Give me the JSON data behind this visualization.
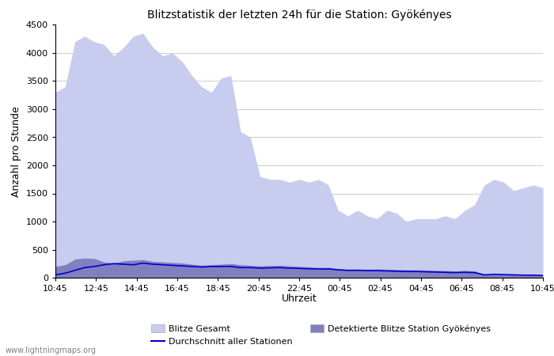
{
  "title": "Blitzstatistik der letzten 24h für die Station: Gyökényes",
  "xlabel": "Uhrzeit",
  "ylabel": "Anzahl pro Stunde",
  "ylim": [
    0,
    4500
  ],
  "yticks": [
    0,
    500,
    1000,
    1500,
    2000,
    2500,
    3000,
    3500,
    4000,
    4500
  ],
  "x_labels": [
    "10:45",
    "12:45",
    "14:45",
    "16:45",
    "18:45",
    "20:45",
    "22:45",
    "00:45",
    "02:45",
    "04:45",
    "06:45",
    "08:45",
    "10:45"
  ],
  "watermark": "www.lightningmaps.org",
  "legend_label_gesamt": "Blitze Gesamt",
  "legend_label_station": "Detektierte Blitze Station Gyökényes",
  "legend_label_avg": "Durchschnitt aller Stationen",
  "bg_color": "#ffffff",
  "grid_color": "#cccccc",
  "fill_color_gesamt": "#c8ccee",
  "fill_color_station": "#8080c0",
  "line_color_avg": "#0000cc",
  "gesamt_y": [
    3300,
    3400,
    4200,
    4300,
    4200,
    4150,
    3950,
    4100,
    4300,
    4350,
    4100,
    3950,
    4000,
    3850,
    3600,
    3400,
    3300,
    3550,
    3600,
    2600,
    2500,
    1800,
    1750,
    1750,
    1700,
    1750,
    1700,
    1750,
    1650,
    1200,
    1100,
    1200,
    1100,
    1050,
    1200,
    1150,
    1000,
    1050,
    1050,
    1050,
    1100,
    1050,
    1200,
    1300,
    1650,
    1750,
    1700,
    1550,
    1600,
    1650,
    1600
  ],
  "station_y": [
    200,
    230,
    330,
    350,
    340,
    280,
    260,
    300,
    310,
    320,
    290,
    280,
    270,
    260,
    240,
    220,
    230,
    240,
    250,
    230,
    220,
    210,
    215,
    220,
    210,
    200,
    190,
    180,
    185,
    160,
    150,
    155,
    150,
    155,
    150,
    145,
    140,
    140,
    135,
    130,
    125,
    120,
    130,
    120,
    50,
    60,
    55,
    50,
    45,
    50,
    45
  ],
  "avg_y": [
    50,
    80,
    130,
    180,
    200,
    230,
    250,
    240,
    230,
    260,
    240,
    230,
    220,
    210,
    200,
    190,
    200,
    200,
    200,
    180,
    180,
    170,
    175,
    180,
    170,
    165,
    160,
    155,
    155,
    140,
    130,
    130,
    125,
    125,
    120,
    115,
    110,
    110,
    105,
    100,
    95,
    90,
    95,
    90,
    50,
    60,
    55,
    50,
    45,
    45,
    40
  ]
}
